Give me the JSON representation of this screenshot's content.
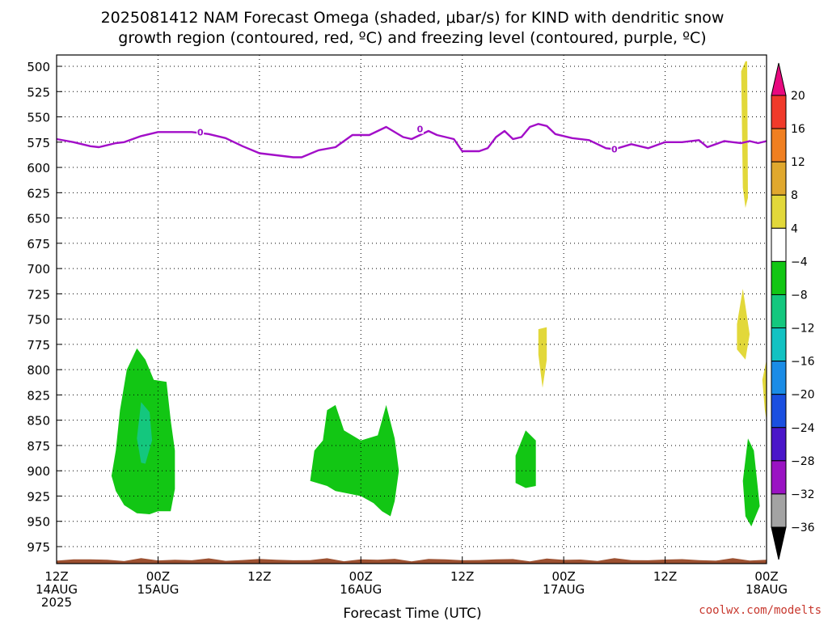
{
  "chart_data": {
    "type": "heatmap",
    "title_lines": [
      "2025081412 NAM Forecast Omega (shaded, μbar/s) for KIND with dendritic snow",
      "growth region (contoured, red, ºC) and freezing level (contoured, purple, ºC)"
    ],
    "xlabel": "Forecast Time (UTC)",
    "credit": "coolwx.com/modelts",
    "x_unit": "hours since 2025-08-14 12Z",
    "xlim": [
      0,
      84
    ],
    "ylim": [
      1000,
      495
    ],
    "y_ticks": [
      500,
      525,
      550,
      575,
      600,
      625,
      650,
      675,
      700,
      725,
      750,
      775,
      800,
      825,
      850,
      875,
      900,
      925,
      950,
      975
    ],
    "x_ticks": [
      {
        "h": 0,
        "lines": [
          "12Z",
          "14AUG",
          "2025"
        ]
      },
      {
        "h": 12,
        "lines": [
          "00Z",
          "15AUG"
        ]
      },
      {
        "h": 24,
        "lines": [
          "12Z"
        ]
      },
      {
        "h": 36,
        "lines": [
          "00Z",
          "16AUG"
        ]
      },
      {
        "h": 48,
        "lines": [
          "12Z"
        ]
      },
      {
        "h": 60,
        "lines": [
          "00Z",
          "17AUG"
        ]
      },
      {
        "h": 72,
        "lines": [
          "12Z"
        ]
      },
      {
        "h": 84,
        "lines": [
          "00Z",
          "18AUG"
        ]
      }
    ],
    "grid": true,
    "colorbar": {
      "levels": [
        "20",
        "16",
        "12",
        "8",
        "4",
        "−4",
        "−8",
        "−12",
        "−16",
        "−20",
        "−24",
        "−28",
        "−32",
        "−36"
      ],
      "colors": [
        "#e8097f",
        "#f03a2a",
        "#f07f21",
        "#e0a82e",
        "#e2d83a",
        "#ffffff",
        "#12c614",
        "#14c77e",
        "#12c2c2",
        "#1a8ce6",
        "#1a4fe0",
        "#4a16c9",
        "#9a13c3",
        "#a3a3a3",
        "#000000"
      ]
    },
    "freezing_level": {
      "color": "#a20ec8",
      "label": "0",
      "label_points": [
        [
          17,
          565
        ],
        [
          43,
          562
        ],
        [
          66,
          582
        ]
      ],
      "points": [
        [
          0,
          572
        ],
        [
          2,
          575
        ],
        [
          4,
          579
        ],
        [
          5,
          580
        ],
        [
          7,
          576
        ],
        [
          8,
          575
        ],
        [
          10,
          569
        ],
        [
          12,
          565
        ],
        [
          14,
          565
        ],
        [
          16,
          565
        ],
        [
          18,
          567
        ],
        [
          20,
          571
        ],
        [
          22,
          579
        ],
        [
          24,
          586
        ],
        [
          26,
          588
        ],
        [
          28,
          590
        ],
        [
          29,
          590
        ],
        [
          31,
          583
        ],
        [
          33,
          580
        ],
        [
          35,
          568
        ],
        [
          37,
          568
        ],
        [
          39,
          560
        ],
        [
          41,
          570
        ],
        [
          42,
          572
        ],
        [
          44,
          564
        ],
        [
          45,
          568
        ],
        [
          47,
          572
        ],
        [
          48,
          584
        ],
        [
          50,
          584
        ],
        [
          51,
          581
        ],
        [
          52,
          570
        ],
        [
          53,
          564
        ],
        [
          54,
          572
        ],
        [
          55,
          570
        ],
        [
          56,
          560
        ],
        [
          57,
          557
        ],
        [
          58,
          559
        ],
        [
          59,
          567
        ],
        [
          61,
          571
        ],
        [
          63,
          573
        ],
        [
          65,
          581
        ],
        [
          66,
          582
        ],
        [
          68,
          577
        ],
        [
          70,
          581
        ],
        [
          72,
          575
        ],
        [
          74,
          575
        ],
        [
          76,
          573
        ],
        [
          77,
          580
        ],
        [
          79,
          574
        ],
        [
          80,
          575
        ],
        [
          81,
          576
        ],
        [
          82,
          574
        ],
        [
          83,
          576
        ],
        [
          84,
          574
        ]
      ]
    },
    "regions": [
      {
        "value": -6,
        "points": [
          [
            6.5,
            905
          ],
          [
            7,
            880
          ],
          [
            7.5,
            840
          ],
          [
            8.3,
            800
          ],
          [
            9.5,
            779
          ],
          [
            10.5,
            790
          ],
          [
            11.5,
            810
          ],
          [
            13,
            812
          ],
          [
            13.5,
            850
          ],
          [
            14,
            880
          ],
          [
            14,
            918
          ],
          [
            13.5,
            940
          ],
          [
            12,
            940
          ],
          [
            11,
            943
          ],
          [
            9.5,
            942
          ],
          [
            8,
            934
          ],
          [
            7,
            920
          ]
        ]
      },
      {
        "value": -10,
        "points": [
          [
            9.5,
            868
          ],
          [
            10,
            832
          ],
          [
            11,
            842
          ],
          [
            11.3,
            870
          ],
          [
            10.5,
            893
          ],
          [
            10,
            892
          ]
        ]
      },
      {
        "value": -6,
        "points": [
          [
            30,
            910
          ],
          [
            30.5,
            880
          ],
          [
            31.5,
            870
          ],
          [
            32,
            840
          ],
          [
            33,
            835
          ],
          [
            34,
            860
          ],
          [
            36,
            870
          ],
          [
            38,
            865
          ],
          [
            39,
            835
          ],
          [
            40,
            868
          ],
          [
            40.5,
            900
          ],
          [
            40,
            930
          ],
          [
            39.5,
            945
          ],
          [
            38.5,
            940
          ],
          [
            37.5,
            932
          ],
          [
            36,
            925
          ],
          [
            33,
            920
          ],
          [
            32,
            915
          ]
        ]
      },
      {
        "value": -6,
        "points": [
          [
            54.3,
            885
          ],
          [
            55.5,
            860
          ],
          [
            56.7,
            870
          ],
          [
            56.7,
            915
          ],
          [
            55.5,
            917
          ],
          [
            54.3,
            912
          ]
        ]
      },
      {
        "value": 6,
        "points": [
          [
            57,
            760
          ],
          [
            58,
            758
          ],
          [
            58,
            790
          ],
          [
            57.5,
            818
          ],
          [
            57,
            785
          ]
        ]
      },
      {
        "value": -6,
        "points": [
          [
            81.2,
            910
          ],
          [
            81.8,
            868
          ],
          [
            82.5,
            880
          ],
          [
            83.2,
            935
          ],
          [
            82.2,
            955
          ],
          [
            81.5,
            945
          ]
        ]
      },
      {
        "value": 6,
        "points": [
          [
            81,
            505
          ],
          [
            81.5,
            495
          ],
          [
            81.7,
            495
          ],
          [
            81.8,
            630
          ],
          [
            81.5,
            640
          ],
          [
            81.2,
            620
          ]
        ]
      },
      {
        "value": 6,
        "points": [
          [
            80.5,
            755
          ],
          [
            81.2,
            720
          ],
          [
            82,
            765
          ],
          [
            81.5,
            790
          ],
          [
            80.5,
            780
          ]
        ]
      },
      {
        "value": 6,
        "points": [
          [
            84,
            790
          ],
          [
            83.5,
            810
          ],
          [
            83.8,
            840
          ],
          [
            84,
            850
          ]
        ]
      }
    ],
    "terrain": {
      "color": "#9c5030",
      "top": 988
    }
  }
}
